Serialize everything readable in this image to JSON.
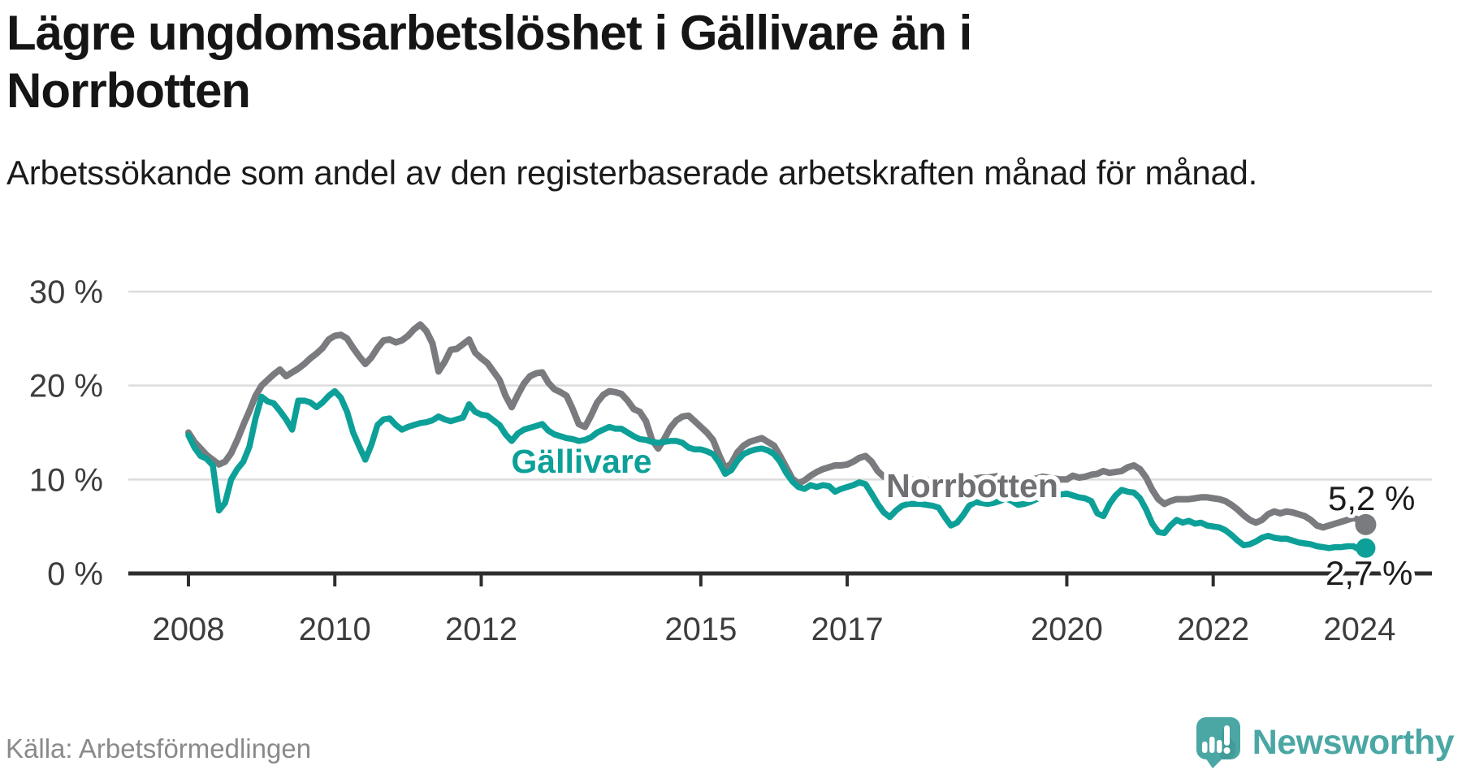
{
  "header": {
    "title": "Lägre ungdomsarbetslöshet i Gällivare än i Norrbotten",
    "subtitle": "Arbetssökande som andel av den registerbaserade arbetskraften månad för månad."
  },
  "source": {
    "label": "Källa: Arbetsförmedlingen"
  },
  "logo": {
    "name": "Newsworthy",
    "brand_color": "#4BA7A4"
  },
  "chart_data": {
    "type": "line",
    "title": "Lägre ungdomsarbetslöshet i Gällivare än i Norrbotten",
    "xlabel": "",
    "ylabel": "",
    "x_start": "2008-01",
    "x_interval": "monthly",
    "x_end": "2024-02",
    "ylim": [
      0,
      31
    ],
    "grid": "horizontal-only",
    "grid_color": "#dcdcdc",
    "axis_color": "#2e2e2e",
    "y_ticks": [
      {
        "value": 0,
        "label": "0 %"
      },
      {
        "value": 10,
        "label": "10 %"
      },
      {
        "value": 20,
        "label": "20 %"
      },
      {
        "value": 30,
        "label": "30 %"
      }
    ],
    "x_ticks": [
      {
        "value": 2008,
        "label": "2008"
      },
      {
        "value": 2010,
        "label": "2010"
      },
      {
        "value": 2012,
        "label": "2012"
      },
      {
        "value": 2015,
        "label": "2015"
      },
      {
        "value": 2017,
        "label": "2017"
      },
      {
        "value": 2020,
        "label": "2020"
      },
      {
        "value": 2022,
        "label": "2022"
      },
      {
        "value": 2024,
        "label": "2024"
      }
    ],
    "series": [
      {
        "name": "Norrbotten",
        "color": "#7A7B7E",
        "label_color": "#6F7073",
        "end_label": "5,2 %",
        "end_value": 5.2,
        "values_monthly": [
          15.0,
          14.0,
          13.3,
          12.6,
          12.1,
          11.6,
          11.9,
          12.8,
          14.2,
          15.8,
          17.3,
          18.9,
          20.0,
          20.6,
          21.2,
          21.7,
          21.0,
          21.4,
          21.8,
          22.3,
          22.9,
          23.4,
          24.0,
          24.9,
          25.3,
          25.4,
          25.0,
          24.0,
          23.1,
          22.3,
          23.0,
          24.0,
          24.8,
          24.9,
          24.6,
          24.8,
          25.3,
          26.0,
          26.5,
          25.8,
          24.5,
          21.5,
          22.5,
          23.8,
          23.9,
          24.4,
          24.9,
          23.5,
          22.9,
          22.4,
          21.5,
          20.6,
          18.9,
          17.7,
          19.0,
          20.2,
          21.0,
          21.3,
          21.4,
          20.3,
          19.6,
          19.3,
          18.9,
          17.5,
          15.9,
          15.6,
          16.8,
          18.2,
          19.0,
          19.4,
          19.3,
          19.1,
          18.4,
          17.5,
          17.2,
          16.2,
          14.2,
          13.3,
          14.3,
          15.5,
          16.3,
          16.7,
          16.8,
          16.2,
          15.6,
          15.0,
          14.2,
          12.6,
          11.2,
          11.7,
          12.9,
          13.6,
          14.0,
          14.2,
          14.4,
          14.0,
          13.6,
          12.5,
          11.3,
          10.1,
          9.6,
          9.9,
          10.4,
          10.8,
          11.1,
          11.3,
          11.5,
          11.5,
          11.6,
          11.9,
          12.3,
          12.5,
          11.9,
          10.9,
          10.3,
          10.0,
          9.8,
          9.8,
          9.9,
          10.0,
          10.1,
          10.0,
          9.8,
          9.6,
          9.4,
          9.5,
          9.7,
          9.9,
          10.0,
          10.1,
          10.2,
          10.2,
          10.3,
          10.4,
          10.2,
          9.9,
          9.7,
          9.8,
          10.0,
          10.1,
          10.3,
          10.2,
          10.1,
          10.0,
          10.0,
          10.4,
          10.2,
          10.3,
          10.5,
          10.6,
          10.9,
          10.7,
          10.8,
          10.9,
          11.3,
          11.5,
          11.1,
          10.2,
          8.9,
          7.9,
          7.4,
          7.7,
          7.9,
          7.9,
          7.9,
          8.0,
          8.1,
          8.1,
          8.0,
          7.9,
          7.7,
          7.3,
          6.8,
          6.2,
          5.7,
          5.4,
          5.7,
          6.3,
          6.6,
          6.4,
          6.6,
          6.5,
          6.3,
          6.1,
          5.7,
          5.1,
          4.9,
          5.1,
          5.3,
          5.5,
          5.7,
          5.9,
          5.7,
          5.2
        ]
      },
      {
        "name": "Gällivare",
        "color": "#0DA098",
        "label_color": "#0DA098",
        "end_label": "2,7 %",
        "end_value": 2.7,
        "values_monthly": [
          14.7,
          13.4,
          12.5,
          12.2,
          11.5,
          6.7,
          7.5,
          10.0,
          11.1,
          11.9,
          13.5,
          16.5,
          18.8,
          18.3,
          18.1,
          17.3,
          16.4,
          15.3,
          18.4,
          18.4,
          18.2,
          17.7,
          18.2,
          18.9,
          19.4,
          18.7,
          17.2,
          15.0,
          13.5,
          12.1,
          13.7,
          15.8,
          16.4,
          16.5,
          15.8,
          15.3,
          15.6,
          15.8,
          16.0,
          16.1,
          16.3,
          16.7,
          16.4,
          16.2,
          16.4,
          16.6,
          18.0,
          17.2,
          16.9,
          16.8,
          16.3,
          15.8,
          14.8,
          14.1,
          14.9,
          15.3,
          15.5,
          15.7,
          15.9,
          15.2,
          14.8,
          14.6,
          14.4,
          14.3,
          14.1,
          14.2,
          14.5,
          15.0,
          15.3,
          15.6,
          15.4,
          15.4,
          15.0,
          14.6,
          14.3,
          14.2,
          14.0,
          13.9,
          14.0,
          14.1,
          14.1,
          13.9,
          13.4,
          13.2,
          13.2,
          13.0,
          12.7,
          11.8,
          10.6,
          11.0,
          12.0,
          12.7,
          13.0,
          13.2,
          13.3,
          13.1,
          12.7,
          11.9,
          10.7,
          9.8,
          9.2,
          9.0,
          9.4,
          9.2,
          9.4,
          9.3,
          8.7,
          9.0,
          9.2,
          9.4,
          9.7,
          9.5,
          8.5,
          7.4,
          6.5,
          6.0,
          6.7,
          7.2,
          7.4,
          7.4,
          7.4,
          7.3,
          7.2,
          7.0,
          6.0,
          5.1,
          5.4,
          6.2,
          7.2,
          7.6,
          7.5,
          7.4,
          7.5,
          7.7,
          8.0,
          7.7,
          7.3,
          7.4,
          7.6,
          7.9,
          8.1,
          8.3,
          8.4,
          8.4,
          8.5,
          8.3,
          8.1,
          8.0,
          7.7,
          6.4,
          6.1,
          7.4,
          8.3,
          8.9,
          8.7,
          8.6,
          8.0,
          6.8,
          5.3,
          4.4,
          4.3,
          5.1,
          5.7,
          5.4,
          5.6,
          5.3,
          5.4,
          5.1,
          5.0,
          4.9,
          4.6,
          4.1,
          3.5,
          3.0,
          3.1,
          3.4,
          3.8,
          4.0,
          3.8,
          3.7,
          3.7,
          3.5,
          3.3,
          3.2,
          3.1,
          2.9,
          2.8,
          2.7,
          2.8,
          2.8,
          2.9,
          2.9,
          2.5,
          2.7
        ]
      }
    ],
    "legend_position": "inline-labels-on-lines"
  }
}
